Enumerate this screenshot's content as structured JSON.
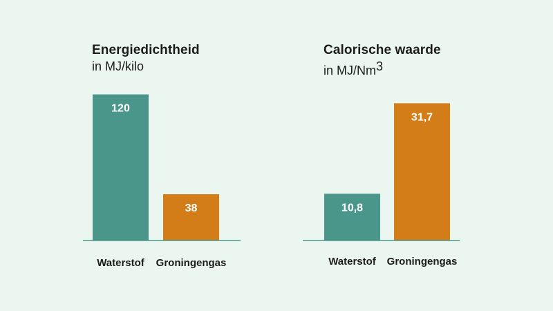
{
  "chart_data": [
    {
      "type": "bar",
      "title": "Energiedichtheid",
      "subtitle": "in MJ/kilo",
      "categories": [
        "Waterstof",
        "Groningengas"
      ],
      "values": [
        120,
        38
      ],
      "value_labels": [
        "120",
        "38"
      ],
      "colors": [
        "#4a968a",
        "#d27d17"
      ],
      "ylim": [
        0,
        126
      ]
    },
    {
      "type": "bar",
      "title": "Calorische waarde",
      "subtitle": "in MJ/Nm",
      "subtitle_superscript": "3",
      "categories": [
        "Waterstof",
        "Groningengas"
      ],
      "values": [
        10.8,
        31.7
      ],
      "value_labels": [
        "10,8",
        "31,7"
      ],
      "colors": [
        "#4a968a",
        "#d27d17"
      ],
      "ylim": [
        0,
        34
      ]
    }
  ],
  "colors": {
    "background": "#ecf6f1",
    "baseline": "#4a968a"
  }
}
